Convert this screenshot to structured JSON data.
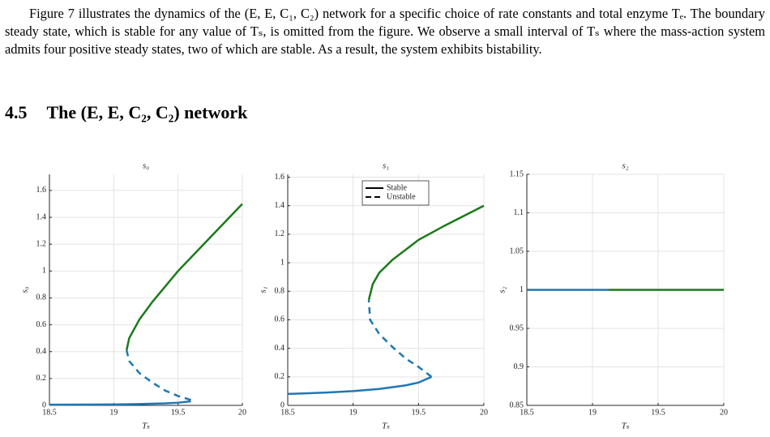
{
  "paragraph": "Figure 7 illustrates the dynamics of the (E, E, C₁, C₂) network for a specific choice of rate constants and total enzyme Tₑ. The boundary steady state, which is stable for any value of Tₛ, is omitted from the figure. We observe a small interval of Tₛ where the mass-action system admits four positive steady states, two of which are stable. As a result, the system exhibits bistability.",
  "section": {
    "number": "4.5",
    "title": "The (E, E, C₂, C₂) network"
  },
  "chart_data": [
    {
      "type": "line",
      "title": "s₀",
      "xlabel": "Tₛ",
      "ylabel": "s₀",
      "xlim": [
        18.5,
        20
      ],
      "xticks": [
        18.5,
        19,
        19.5,
        20
      ],
      "ylim": [
        0,
        1.72
      ],
      "yticks": [
        0,
        0.2,
        0.4,
        0.6,
        0.8,
        1,
        1.2,
        1.4,
        1.6
      ],
      "grid": true,
      "series": [
        {
          "color": "#1f77b4",
          "dash": false,
          "x": [
            18.5,
            18.8,
            19,
            19.2,
            19.4,
            19.5,
            19.6
          ],
          "values": [
            0.005,
            0.006,
            0.007,
            0.01,
            0.015,
            0.02,
            0.03
          ]
        },
        {
          "color": "#1f77b4",
          "dash": true,
          "x": [
            19.6,
            19.5,
            19.4,
            19.3,
            19.2,
            19.12,
            19.1
          ],
          "values": [
            0.04,
            0.07,
            0.11,
            0.17,
            0.24,
            0.33,
            0.41
          ]
        },
        {
          "color": "#1a7a1a",
          "dash": false,
          "x": [
            19.1,
            19.12,
            19.2,
            19.3,
            19.5,
            19.7,
            20
          ],
          "values": [
            0.41,
            0.5,
            0.64,
            0.77,
            1.0,
            1.2,
            1.5
          ]
        }
      ]
    },
    {
      "type": "line",
      "title": "s₁",
      "xlabel": "Tₛ",
      "ylabel": "s₁",
      "xlim": [
        18.5,
        20
      ],
      "xticks": [
        18.5,
        19,
        19.5,
        20
      ],
      "ylim": [
        0,
        1.62
      ],
      "yticks": [
        0,
        0.2,
        0.4,
        0.6,
        0.8,
        1,
        1.2,
        1.4,
        1.6
      ],
      "grid": true,
      "legend": {
        "position": "top",
        "entries": [
          {
            "label": "Stable",
            "dash": false
          },
          {
            "label": "Unstable",
            "dash": true
          }
        ]
      },
      "series": [
        {
          "color": "#1f77b4",
          "dash": false,
          "x": [
            18.5,
            18.8,
            19,
            19.2,
            19.4,
            19.5,
            19.6
          ],
          "values": [
            0.08,
            0.09,
            0.1,
            0.115,
            0.14,
            0.16,
            0.2
          ]
        },
        {
          "color": "#1f77b4",
          "dash": true,
          "x": [
            19.6,
            19.5,
            19.4,
            19.3,
            19.2,
            19.13,
            19.12
          ],
          "values": [
            0.2,
            0.27,
            0.33,
            0.41,
            0.5,
            0.6,
            0.74
          ]
        },
        {
          "color": "#1a7a1a",
          "dash": false,
          "x": [
            19.12,
            19.15,
            19.2,
            19.3,
            19.5,
            19.7,
            20
          ],
          "values": [
            0.74,
            0.85,
            0.93,
            1.02,
            1.16,
            1.26,
            1.4
          ]
        }
      ]
    },
    {
      "type": "line",
      "title": "s₂",
      "xlabel": "Tₛ",
      "ylabel": "s₂",
      "xlim": [
        18.5,
        20
      ],
      "xticks": [
        18.5,
        19,
        19.5,
        20
      ],
      "ylim": [
        0.85,
        1.15
      ],
      "yticks": [
        0.85,
        0.9,
        0.95,
        1,
        1.05,
        1.1,
        1.15
      ],
      "grid": true,
      "series": [
        {
          "color": "#1f77b4",
          "dash": false,
          "x": [
            18.5,
            19.12
          ],
          "values": [
            1,
            1
          ]
        },
        {
          "color": "#1a7a1a",
          "dash": false,
          "x": [
            19.12,
            20
          ],
          "values": [
            1,
            1
          ]
        }
      ]
    }
  ]
}
